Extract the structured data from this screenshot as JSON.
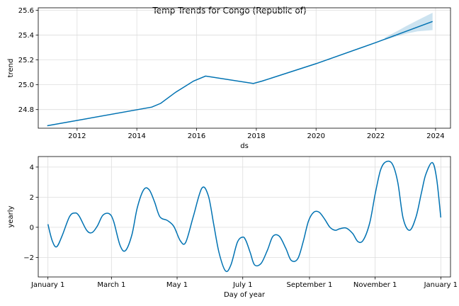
{
  "figure": {
    "title": "Temp Trends for Congo (Republic of)",
    "line_color": "#0072B2",
    "band_color": "#0072B2"
  },
  "chart_data": [
    {
      "type": "line",
      "title": "Temp Trends for Congo (Republic of)",
      "xlabel": "ds",
      "ylabel": "trend",
      "xlim": [
        2010.7,
        2024.5
      ],
      "ylim": [
        24.65,
        25.62
      ],
      "grid": true,
      "xticks": [
        2012,
        2014,
        2016,
        2018,
        2020,
        2022,
        2024
      ],
      "xtick_labels": [
        "2012",
        "2014",
        "2016",
        "2018",
        "2020",
        "2022",
        "2024"
      ],
      "yticks": [
        24.8,
        25.0,
        25.2,
        25.4,
        25.6
      ],
      "ytick_labels": [
        "24.8",
        "25.0",
        "25.2",
        "25.4",
        "25.6"
      ],
      "series": [
        {
          "x": [
            2011.0,
            2014.5,
            2014.8,
            2015.3,
            2015.9,
            2016.3,
            2017.9,
            2018.2,
            2020.0,
            2022.0,
            2023.9
          ],
          "y": [
            24.67,
            24.82,
            24.85,
            24.94,
            25.03,
            25.07,
            25.01,
            25.03,
            25.17,
            25.34,
            25.51
          ]
        }
      ],
      "uncertainty_band": {
        "x": [
          2022.3,
          2022.7,
          2023.0,
          2023.4,
          2023.9
        ],
        "upper": [
          25.38,
          25.43,
          25.47,
          25.52,
          25.58
        ],
        "lower": [
          25.36,
          25.39,
          25.41,
          25.43,
          25.44
        ]
      }
    },
    {
      "type": "line",
      "xlabel": "Day of year",
      "ylabel": "yearly",
      "xlim": [
        -9,
        374
      ],
      "ylim": [
        -3.3,
        4.7
      ],
      "grid": true,
      "xticks": [
        0,
        59,
        120,
        181,
        243,
        304,
        365
      ],
      "xtick_labels": [
        "January 1",
        "March 1",
        "May 1",
        "July 1",
        "September 1",
        "November 1",
        "January 1"
      ],
      "yticks": [
        -2,
        0,
        2,
        4
      ],
      "ytick_labels": [
        "−2",
        "0",
        "2",
        "4"
      ],
      "series": [
        {
          "x": [
            0,
            4,
            8,
            13,
            20,
            25,
            29,
            36,
            41,
            46,
            51,
            57,
            61,
            67,
            72,
            78,
            83,
            89,
            94,
            99,
            104,
            111,
            117,
            123,
            128,
            135,
            143,
            149,
            154,
            159,
            165,
            170,
            176,
            181,
            184,
            188,
            192,
            198,
            204,
            209,
            215,
            221,
            226,
            232,
            237,
            242,
            247,
            252,
            257,
            262,
            267,
            271,
            277,
            283,
            288,
            293,
            299,
            304,
            309,
            314,
            320,
            325,
            330,
            336,
            342,
            347,
            351,
            357,
            361,
            365
          ],
          "y": [
            0.2,
            -0.9,
            -1.3,
            -0.6,
            0.7,
            0.95,
            0.75,
            -0.2,
            -0.35,
            0.1,
            0.8,
            0.9,
            0.4,
            -1.2,
            -1.55,
            -0.5,
            1.3,
            2.5,
            2.5,
            1.7,
            0.7,
            0.45,
            0.05,
            -0.9,
            -1.0,
            0.7,
            2.6,
            2.1,
            0.2,
            -1.7,
            -2.9,
            -2.5,
            -1.0,
            -0.65,
            -0.9,
            -1.7,
            -2.5,
            -2.4,
            -1.5,
            -0.6,
            -0.6,
            -1.4,
            -2.2,
            -2.1,
            -1.0,
            0.4,
            1.0,
            1.0,
            0.55,
            0.0,
            -0.2,
            -0.1,
            -0.05,
            -0.4,
            -0.95,
            -0.85,
            0.3,
            2.2,
            3.8,
            4.35,
            4.2,
            3.0,
            0.6,
            -0.2,
            0.7,
            2.3,
            3.5,
            4.3,
            3.3,
            0.65
          ]
        }
      ]
    }
  ]
}
